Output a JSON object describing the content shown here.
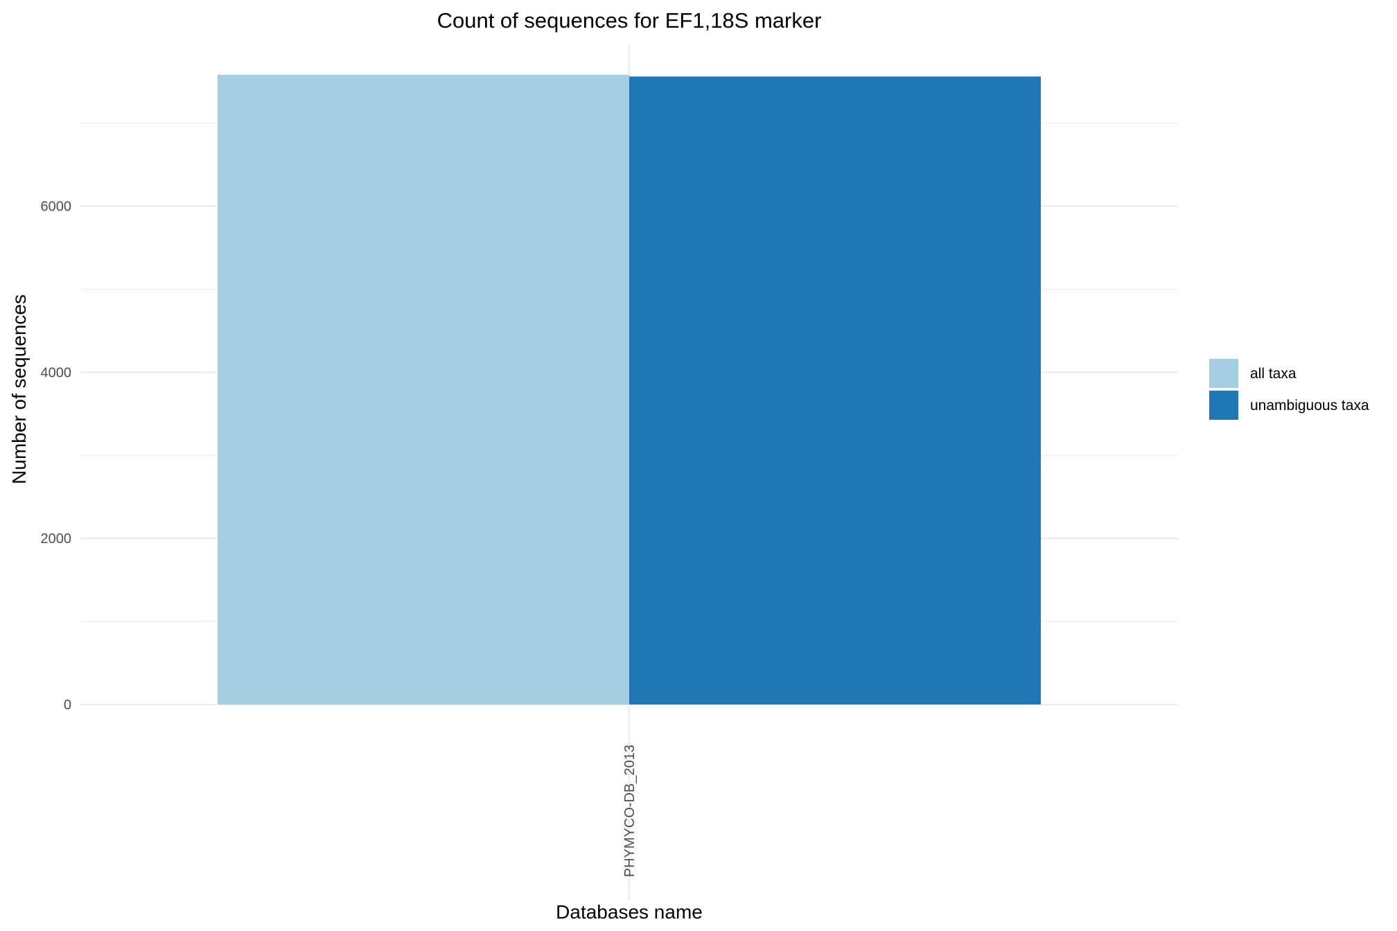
{
  "chart_data": {
    "type": "bar",
    "title": "Count of sequences for EF1,18S marker",
    "xlabel": "Databases name",
    "ylabel": "Number of sequences",
    "categories": [
      "PHYMYCO-DB_2013"
    ],
    "series": [
      {
        "name": "all taxa",
        "values": [
          7580
        ],
        "color": "#a6cee3"
      },
      {
        "name": "unambiguous taxa",
        "values": [
          7560
        ],
        "color": "#1f78b4"
      }
    ],
    "ylim": [
      0,
      7580
    ],
    "yticks": [
      0,
      2000,
      4000,
      6000
    ],
    "yminor": [
      1000,
      3000,
      5000,
      7000
    ],
    "bar_position": "dodge",
    "grid": true,
    "legend": "right",
    "x_tick_label_rotation": "vertical"
  }
}
